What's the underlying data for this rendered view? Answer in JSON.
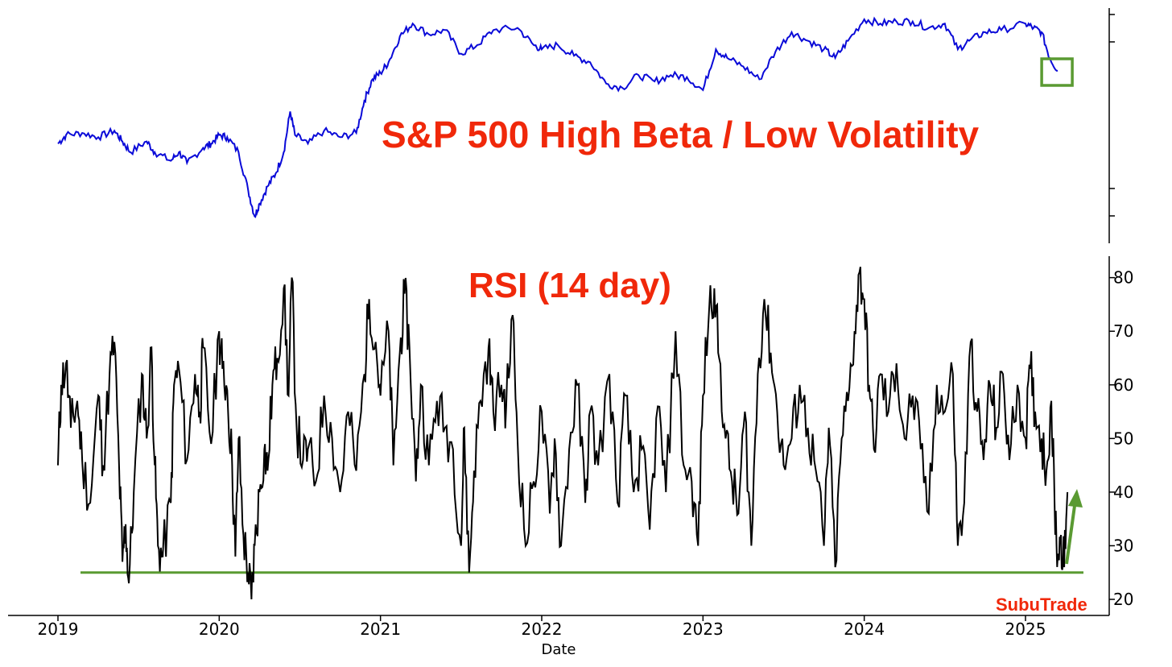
{
  "colors": {
    "price_line": "#0a0ad8",
    "rsi_line": "#000000",
    "annotation": "#5a9a32",
    "title_red": "#f0280a",
    "background": "#ffffff"
  },
  "chart_data": [
    {
      "type": "line",
      "title": "S&P 500 High Beta / Low Volatility",
      "xlabel": "",
      "ylabel": "",
      "y_tick_labels_shown": false,
      "xlim": [
        2018.7,
        2025.5
      ],
      "series": [
        {
          "values_relative": [
            [
              2019.0,
              0.42
            ],
            [
              2019.05,
              0.46
            ],
            [
              2019.15,
              0.47
            ],
            [
              2019.25,
              0.45
            ],
            [
              2019.35,
              0.48
            ],
            [
              2019.4,
              0.43
            ],
            [
              2019.45,
              0.38
            ],
            [
              2019.55,
              0.43
            ],
            [
              2019.6,
              0.38
            ],
            [
              2019.7,
              0.34
            ],
            [
              2019.75,
              0.38
            ],
            [
              2019.8,
              0.33
            ],
            [
              2019.9,
              0.4
            ],
            [
              2019.95,
              0.42
            ],
            [
              2020.0,
              0.46
            ],
            [
              2020.05,
              0.45
            ],
            [
              2020.12,
              0.38
            ],
            [
              2020.18,
              0.2
            ],
            [
              2020.22,
              0.08
            ],
            [
              2020.25,
              0.14
            ],
            [
              2020.3,
              0.22
            ],
            [
              2020.35,
              0.28
            ],
            [
              2020.4,
              0.38
            ],
            [
              2020.44,
              0.57
            ],
            [
              2020.47,
              0.46
            ],
            [
              2020.55,
              0.42
            ],
            [
              2020.65,
              0.48
            ],
            [
              2020.75,
              0.45
            ],
            [
              2020.85,
              0.47
            ],
            [
              2020.9,
              0.62
            ],
            [
              2020.95,
              0.72
            ],
            [
              2021.0,
              0.75
            ],
            [
              2021.05,
              0.8
            ],
            [
              2021.12,
              0.92
            ],
            [
              2021.2,
              0.98
            ],
            [
              2021.3,
              0.93
            ],
            [
              2021.4,
              0.95
            ],
            [
              2021.5,
              0.84
            ],
            [
              2021.6,
              0.88
            ],
            [
              2021.7,
              0.95
            ],
            [
              2021.85,
              0.96
            ],
            [
              2021.95,
              0.88
            ],
            [
              2022.0,
              0.86
            ],
            [
              2022.1,
              0.88
            ],
            [
              2022.2,
              0.83
            ],
            [
              2022.3,
              0.8
            ],
            [
              2022.4,
              0.7
            ],
            [
              2022.5,
              0.68
            ],
            [
              2022.6,
              0.74
            ],
            [
              2022.7,
              0.71
            ],
            [
              2022.8,
              0.74
            ],
            [
              2022.9,
              0.73
            ],
            [
              2023.0,
              0.67
            ],
            [
              2023.08,
              0.86
            ],
            [
              2023.15,
              0.82
            ],
            [
              2023.25,
              0.78
            ],
            [
              2023.35,
              0.72
            ],
            [
              2023.45,
              0.85
            ],
            [
              2023.55,
              0.94
            ],
            [
              2023.65,
              0.9
            ],
            [
              2023.75,
              0.86
            ],
            [
              2023.82,
              0.82
            ],
            [
              2023.9,
              0.9
            ],
            [
              2024.0,
              1.0
            ],
            [
              2024.1,
              0.98
            ],
            [
              2024.2,
              0.99
            ],
            [
              2024.3,
              0.99
            ],
            [
              2024.4,
              0.96
            ],
            [
              2024.5,
              0.98
            ],
            [
              2024.58,
              0.86
            ],
            [
              2024.65,
              0.9
            ],
            [
              2024.75,
              0.94
            ],
            [
              2024.85,
              0.95
            ],
            [
              2025.0,
              0.98
            ],
            [
              2025.05,
              0.96
            ],
            [
              2025.1,
              0.94
            ],
            [
              2025.15,
              0.82
            ],
            [
              2025.2,
              0.76
            ]
          ]
        }
      ],
      "annotations": [
        {
          "type": "box",
          "date": 2025.2,
          "description": "highlighted recent low"
        }
      ]
    },
    {
      "type": "line",
      "title": "RSI (14 day)",
      "xlabel": "Date",
      "ylabel": "",
      "ylim": [
        17,
        84
      ],
      "yticks": [
        20,
        30,
        40,
        50,
        60,
        70,
        80
      ],
      "xticks": [
        2019,
        2020,
        2021,
        2022,
        2023,
        2024,
        2025
      ],
      "xlim": [
        2018.7,
        2025.5
      ],
      "series": [
        {
          "values": [
            [
              2019.0,
              45
            ],
            [
              2019.02,
              60
            ],
            [
              2019.05,
              64
            ],
            [
              2019.08,
              52
            ],
            [
              2019.12,
              57
            ],
            [
              2019.15,
              46
            ],
            [
              2019.2,
              38
            ],
            [
              2019.25,
              58
            ],
            [
              2019.28,
              45
            ],
            [
              2019.32,
              62
            ],
            [
              2019.35,
              68
            ],
            [
              2019.38,
              44
            ],
            [
              2019.4,
              27
            ],
            [
              2019.42,
              34
            ],
            [
              2019.44,
              23
            ],
            [
              2019.47,
              40
            ],
            [
              2019.52,
              62
            ],
            [
              2019.55,
              50
            ],
            [
              2019.58,
              67
            ],
            [
              2019.6,
              45
            ],
            [
              2019.62,
              30
            ],
            [
              2019.65,
              28
            ],
            [
              2019.7,
              38
            ],
            [
              2019.72,
              60
            ],
            [
              2019.75,
              63
            ],
            [
              2019.8,
              46
            ],
            [
              2019.85,
              62
            ],
            [
              2019.88,
              55
            ],
            [
              2019.9,
              67
            ],
            [
              2019.95,
              49
            ],
            [
              2020.0,
              70
            ],
            [
              2020.02,
              63
            ],
            [
              2020.05,
              59
            ],
            [
              2020.08,
              45
            ],
            [
              2020.1,
              28
            ],
            [
              2020.12,
              50
            ],
            [
              2020.15,
              32
            ],
            [
              2020.18,
              25
            ],
            [
              2020.2,
              20
            ],
            [
              2020.22,
              30
            ],
            [
              2020.25,
              40
            ],
            [
              2020.28,
              48
            ],
            [
              2020.3,
              44
            ],
            [
              2020.33,
              60
            ],
            [
              2020.36,
              65
            ],
            [
              2020.4,
              78
            ],
            [
              2020.43,
              58
            ],
            [
              2020.45,
              80
            ],
            [
              2020.48,
              52
            ],
            [
              2020.52,
              46
            ],
            [
              2020.55,
              48
            ],
            [
              2020.6,
              42
            ],
            [
              2020.65,
              58
            ],
            [
              2020.7,
              50
            ],
            [
              2020.75,
              40
            ],
            [
              2020.8,
              55
            ],
            [
              2020.85,
              44
            ],
            [
              2020.9,
              62
            ],
            [
              2020.93,
              76
            ],
            [
              2020.97,
              68
            ],
            [
              2021.0,
              58
            ],
            [
              2021.05,
              70
            ],
            [
              2021.08,
              45
            ],
            [
              2021.12,
              66
            ],
            [
              2021.15,
              77
            ],
            [
              2021.18,
              67
            ],
            [
              2021.22,
              42
            ],
            [
              2021.25,
              60
            ],
            [
              2021.3,
              45
            ],
            [
              2021.35,
              57
            ],
            [
              2021.4,
              52
            ],
            [
              2021.45,
              48
            ],
            [
              2021.5,
              30
            ],
            [
              2021.52,
              52
            ],
            [
              2021.55,
              25
            ],
            [
              2021.58,
              44
            ],
            [
              2021.62,
              57
            ],
            [
              2021.67,
              67
            ],
            [
              2021.7,
              55
            ],
            [
              2021.75,
              60
            ],
            [
              2021.78,
              56
            ],
            [
              2021.82,
              73
            ],
            [
              2021.85,
              50
            ],
            [
              2021.9,
              30
            ],
            [
              2021.95,
              42
            ],
            [
              2022.0,
              55
            ],
            [
              2022.05,
              36
            ],
            [
              2022.08,
              50
            ],
            [
              2022.12,
              30
            ],
            [
              2022.17,
              48
            ],
            [
              2022.22,
              60
            ],
            [
              2022.27,
              38
            ],
            [
              2022.3,
              55
            ],
            [
              2022.35,
              45
            ],
            [
              2022.42,
              62
            ],
            [
              2022.47,
              38
            ],
            [
              2022.52,
              58
            ],
            [
              2022.57,
              40
            ],
            [
              2022.62,
              48
            ],
            [
              2022.67,
              33
            ],
            [
              2022.72,
              56
            ],
            [
              2022.77,
              40
            ],
            [
              2022.83,
              70
            ],
            [
              2022.88,
              45
            ],
            [
              2022.93,
              42
            ],
            [
              2022.97,
              30
            ],
            [
              2023.0,
              58
            ],
            [
              2023.04,
              75
            ],
            [
              2023.07,
              78
            ],
            [
              2023.1,
              65
            ],
            [
              2023.14,
              50
            ],
            [
              2023.18,
              42
            ],
            [
              2023.22,
              36
            ],
            [
              2023.26,
              55
            ],
            [
              2023.3,
              30
            ],
            [
              2023.34,
              62
            ],
            [
              2023.38,
              76
            ],
            [
              2023.42,
              66
            ],
            [
              2023.46,
              55
            ],
            [
              2023.5,
              45
            ],
            [
              2023.55,
              50
            ],
            [
              2023.6,
              60
            ],
            [
              2023.65,
              52
            ],
            [
              2023.7,
              44
            ],
            [
              2023.75,
              30
            ],
            [
              2023.78,
              52
            ],
            [
              2023.82,
              26
            ],
            [
              2023.86,
              50
            ],
            [
              2023.9,
              57
            ],
            [
              2023.94,
              70
            ],
            [
              2023.97,
              81
            ],
            [
              2024.0,
              76
            ],
            [
              2024.03,
              60
            ],
            [
              2024.06,
              48
            ],
            [
              2024.1,
              62
            ],
            [
              2024.15,
              55
            ],
            [
              2024.2,
              64
            ],
            [
              2024.25,
              50
            ],
            [
              2024.3,
              58
            ],
            [
              2024.35,
              48
            ],
            [
              2024.4,
              36
            ],
            [
              2024.45,
              60
            ],
            [
              2024.5,
              55
            ],
            [
              2024.55,
              62
            ],
            [
              2024.58,
              30
            ],
            [
              2024.62,
              38
            ],
            [
              2024.66,
              68
            ],
            [
              2024.7,
              55
            ],
            [
              2024.74,
              46
            ],
            [
              2024.78,
              60
            ],
            [
              2024.82,
              52
            ],
            [
              2024.86,
              62
            ],
            [
              2024.9,
              46
            ],
            [
              2024.95,
              60
            ],
            [
              2025.0,
              50
            ],
            [
              2025.03,
              63
            ],
            [
              2025.06,
              55
            ],
            [
              2025.1,
              50
            ],
            [
              2025.13,
              44
            ],
            [
              2025.16,
              57
            ],
            [
              2025.18,
              38
            ],
            [
              2025.2,
              28
            ],
            [
              2025.22,
              32
            ],
            [
              2025.24,
              26
            ],
            [
              2025.26,
              40
            ]
          ]
        }
      ],
      "annotations": [
        {
          "type": "hline",
          "y": 25
        },
        {
          "type": "arrow",
          "direction": "up"
        }
      ]
    }
  ],
  "watermark": "SubuTrade"
}
